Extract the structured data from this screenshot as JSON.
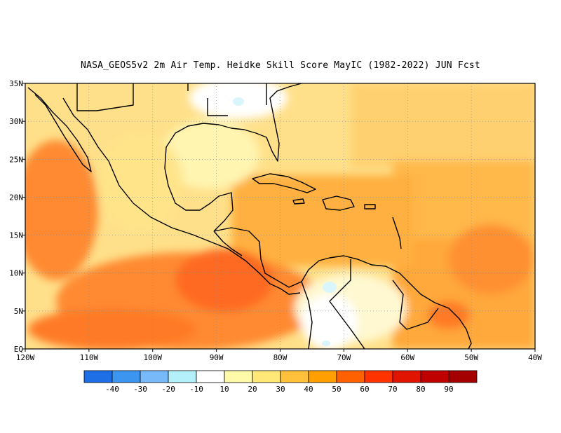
{
  "title": "NASA_GEOS5v2  2m Air Temp. Heidke Skill Score MayIC (1982-2022) JUN Fcst",
  "map": {
    "lon_range": [
      -120,
      -40
    ],
    "lat_range": [
      0,
      35
    ],
    "x_ticks": [
      {
        "value": -120,
        "label": "120W"
      },
      {
        "value": -110,
        "label": "110W"
      },
      {
        "value": -100,
        "label": "100W"
      },
      {
        "value": -90,
        "label": "90W"
      },
      {
        "value": -80,
        "label": "80W"
      },
      {
        "value": -70,
        "label": "70W"
      },
      {
        "value": -60,
        "label": "60W"
      },
      {
        "value": -50,
        "label": "50W"
      },
      {
        "value": -40,
        "label": "40W"
      }
    ],
    "y_ticks": [
      {
        "value": 35,
        "label": "35N"
      },
      {
        "value": 30,
        "label": "30N"
      },
      {
        "value": 25,
        "label": "25N"
      },
      {
        "value": 20,
        "label": "20N"
      },
      {
        "value": 15,
        "label": "15N"
      },
      {
        "value": 10,
        "label": "10N"
      },
      {
        "value": 5,
        "label": "5N"
      },
      {
        "value": 0,
        "label": "EQ"
      }
    ],
    "grid": "dotted"
  },
  "colorbar": {
    "colors": [
      "#1e6ee6",
      "#3c96f0",
      "#78b9fa",
      "#b4f0fa",
      "#ffffff",
      "#fffaaa",
      "#ffe878",
      "#ffc03c",
      "#ffa000",
      "#ff6000",
      "#ff3200",
      "#e11400",
      "#c00000",
      "#a50000"
    ],
    "labels": [
      "-40",
      "-30",
      "-20",
      "-10",
      "10",
      "20",
      "30",
      "40",
      "50",
      "60",
      "70",
      "80",
      "90"
    ]
  },
  "chart_data": {
    "type": "heatmap",
    "title": "NASA_GEOS5v2  2m Air Temp. Heidke Skill Score MayIC (1982-2022) JUN Fcst",
    "x_range": [
      -120,
      -40
    ],
    "y_range": [
      0,
      35
    ],
    "levels": [
      -40,
      -30,
      -20,
      -10,
      10,
      20,
      30,
      40,
      50,
      60,
      70,
      80,
      90
    ],
    "region_values": [
      {
        "lon": [
          -120,
          -112
        ],
        "lat": [
          0,
          35
        ],
        "value": 55
      },
      {
        "lon": [
          -112,
          -96
        ],
        "lat": [
          0,
          12
        ],
        "value": 58
      },
      {
        "lon": [
          -96,
          -84
        ],
        "lat": [
          3,
          16
        ],
        "value": 65
      },
      {
        "lon": [
          -95,
          -82
        ],
        "lat": [
          18,
          30
        ],
        "value": 22
      },
      {
        "lon": [
          -84,
          -60
        ],
        "lat": [
          10,
          25
        ],
        "value": 42
      },
      {
        "lon": [
          -60,
          -40
        ],
        "lat": [
          5,
          20
        ],
        "value": 48
      },
      {
        "lon": [
          -60,
          -40
        ],
        "lat": [
          20,
          35
        ],
        "value": 32
      },
      {
        "lon": [
          -78,
          -62
        ],
        "lat": [
          0,
          10
        ],
        "value": 15
      },
      {
        "lon": [
          -100,
          -80
        ],
        "lat": [
          30,
          35
        ],
        "value": 5
      }
    ]
  }
}
